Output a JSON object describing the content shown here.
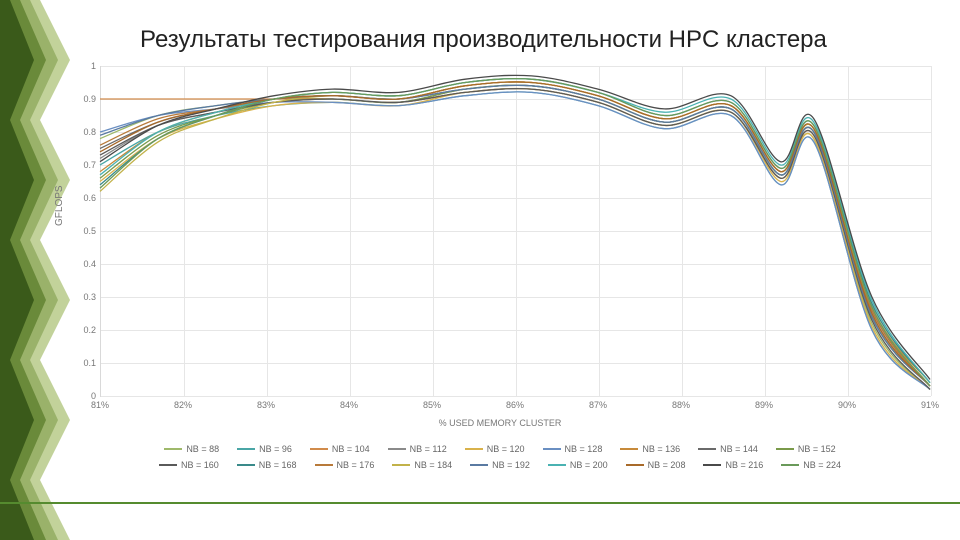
{
  "title": "Результаты тестирования производительности HPC кластера",
  "chart": {
    "type": "line",
    "ylabel": "GFLOPS",
    "xlabel": "% USED MEMORY CLUSTER",
    "ylim": [
      0,
      1
    ],
    "ytick_step": 0.1,
    "yticks": [
      "0",
      "0.1",
      "0.2",
      "0.3",
      "0.4",
      "0.5",
      "0.6",
      "0.7",
      "0.8",
      "0.9",
      "1"
    ],
    "xticks": [
      "81%",
      "82%",
      "83%",
      "84%",
      "85%",
      "86%",
      "87%",
      "88%",
      "89%",
      "90%",
      "91%"
    ],
    "background_color": "#ffffff",
    "grid_color": "#e6e6e6",
    "axis_font_size": 9,
    "title_font_size": 24,
    "line_width": 1.3,
    "series": [
      {
        "name": "NB = 88",
        "color": "#9fb96b",
        "y": [
          0.78,
          0.85,
          0.88,
          0.9,
          0.9,
          0.89,
          0.92,
          0.93,
          0.89,
          0.82,
          0.86,
          0.66,
          0.78,
          0.22,
          0.02
        ]
      },
      {
        "name": "NB = 96",
        "color": "#4aa6a6",
        "y": [
          0.7,
          0.8,
          0.85,
          0.88,
          0.89,
          0.88,
          0.91,
          0.92,
          0.88,
          0.81,
          0.85,
          0.64,
          0.77,
          0.2,
          0.02
        ]
      },
      {
        "name": "NB = 104",
        "color": "#d18b4b",
        "y": [
          0.9,
          0.9,
          0.9,
          0.9,
          0.9,
          0.89,
          0.92,
          0.93,
          0.89,
          0.82,
          0.86,
          0.66,
          0.79,
          0.24,
          0.03
        ]
      },
      {
        "name": "NB = 112",
        "color": "#8a8a8a",
        "y": [
          0.72,
          0.82,
          0.86,
          0.89,
          0.9,
          0.89,
          0.93,
          0.94,
          0.9,
          0.83,
          0.87,
          0.67,
          0.8,
          0.25,
          0.03
        ]
      },
      {
        "name": "NB = 120",
        "color": "#d9b24b",
        "y": [
          0.65,
          0.78,
          0.84,
          0.88,
          0.89,
          0.88,
          0.92,
          0.93,
          0.89,
          0.82,
          0.86,
          0.65,
          0.78,
          0.21,
          0.02
        ]
      },
      {
        "name": "NB = 128",
        "color": "#6a8fc2",
        "y": [
          0.8,
          0.85,
          0.87,
          0.89,
          0.89,
          0.88,
          0.91,
          0.92,
          0.88,
          0.81,
          0.85,
          0.64,
          0.77,
          0.2,
          0.02
        ]
      },
      {
        "name": "NB = 136",
        "color": "#c78a3a",
        "y": [
          0.68,
          0.8,
          0.86,
          0.9,
          0.91,
          0.9,
          0.94,
          0.95,
          0.91,
          0.84,
          0.88,
          0.68,
          0.81,
          0.27,
          0.04
        ]
      },
      {
        "name": "NB = 144",
        "color": "#6a6a6a",
        "y": [
          0.75,
          0.83,
          0.87,
          0.9,
          0.91,
          0.9,
          0.93,
          0.94,
          0.9,
          0.83,
          0.87,
          0.67,
          0.8,
          0.26,
          0.03
        ]
      },
      {
        "name": "NB = 152",
        "color": "#7a9a4a",
        "y": [
          0.66,
          0.79,
          0.85,
          0.89,
          0.9,
          0.89,
          0.93,
          0.94,
          0.9,
          0.83,
          0.87,
          0.67,
          0.8,
          0.24,
          0.03
        ]
      },
      {
        "name": "NB = 160",
        "color": "#5a5a5a",
        "y": [
          0.73,
          0.82,
          0.86,
          0.89,
          0.9,
          0.89,
          0.92,
          0.93,
          0.89,
          0.82,
          0.86,
          0.66,
          0.79,
          0.23,
          0.02
        ]
      },
      {
        "name": "NB = 168",
        "color": "#3a8a8a",
        "y": [
          0.64,
          0.78,
          0.85,
          0.9,
          0.92,
          0.91,
          0.95,
          0.96,
          0.92,
          0.85,
          0.89,
          0.69,
          0.82,
          0.28,
          0.04
        ]
      },
      {
        "name": "NB = 176",
        "color": "#b87a3a",
        "y": [
          0.76,
          0.84,
          0.87,
          0.9,
          0.91,
          0.9,
          0.94,
          0.95,
          0.91,
          0.84,
          0.88,
          0.68,
          0.81,
          0.26,
          0.03
        ]
      },
      {
        "name": "NB = 184",
        "color": "#c2b24a",
        "y": [
          0.62,
          0.77,
          0.84,
          0.89,
          0.91,
          0.9,
          0.94,
          0.95,
          0.91,
          0.84,
          0.88,
          0.68,
          0.81,
          0.27,
          0.03
        ]
      },
      {
        "name": "NB = 192",
        "color": "#5a7aa2",
        "y": [
          0.79,
          0.85,
          0.88,
          0.9,
          0.91,
          0.9,
          0.93,
          0.94,
          0.9,
          0.83,
          0.87,
          0.67,
          0.8,
          0.24,
          0.03
        ]
      },
      {
        "name": "NB = 200",
        "color": "#4ab2b2",
        "y": [
          0.67,
          0.8,
          0.86,
          0.9,
          0.92,
          0.91,
          0.95,
          0.96,
          0.92,
          0.86,
          0.9,
          0.7,
          0.83,
          0.29,
          0.04
        ]
      },
      {
        "name": "NB = 208",
        "color": "#a86a2a",
        "y": [
          0.74,
          0.83,
          0.87,
          0.9,
          0.91,
          0.9,
          0.94,
          0.95,
          0.91,
          0.84,
          0.88,
          0.68,
          0.81,
          0.25,
          0.03
        ]
      },
      {
        "name": "NB = 216",
        "color": "#4a4a4a",
        "y": [
          0.71,
          0.82,
          0.87,
          0.91,
          0.93,
          0.92,
          0.96,
          0.97,
          0.93,
          0.87,
          0.91,
          0.71,
          0.84,
          0.3,
          0.05
        ]
      },
      {
        "name": "NB = 224",
        "color": "#6a9a5a",
        "y": [
          0.63,
          0.78,
          0.85,
          0.9,
          0.92,
          0.91,
          0.95,
          0.96,
          0.92,
          0.85,
          0.89,
          0.69,
          0.82,
          0.27,
          0.03
        ]
      }
    ],
    "x_positions": [
      0,
      0.07,
      0.14,
      0.21,
      0.28,
      0.36,
      0.44,
      0.52,
      0.6,
      0.68,
      0.76,
      0.82,
      0.86,
      0.93,
      1.0
    ]
  },
  "accent_colors": {
    "dark": "#3a5a1a",
    "mid": "#6a8a3a",
    "light": "#9ab26a",
    "pale": "#c2d29a"
  }
}
